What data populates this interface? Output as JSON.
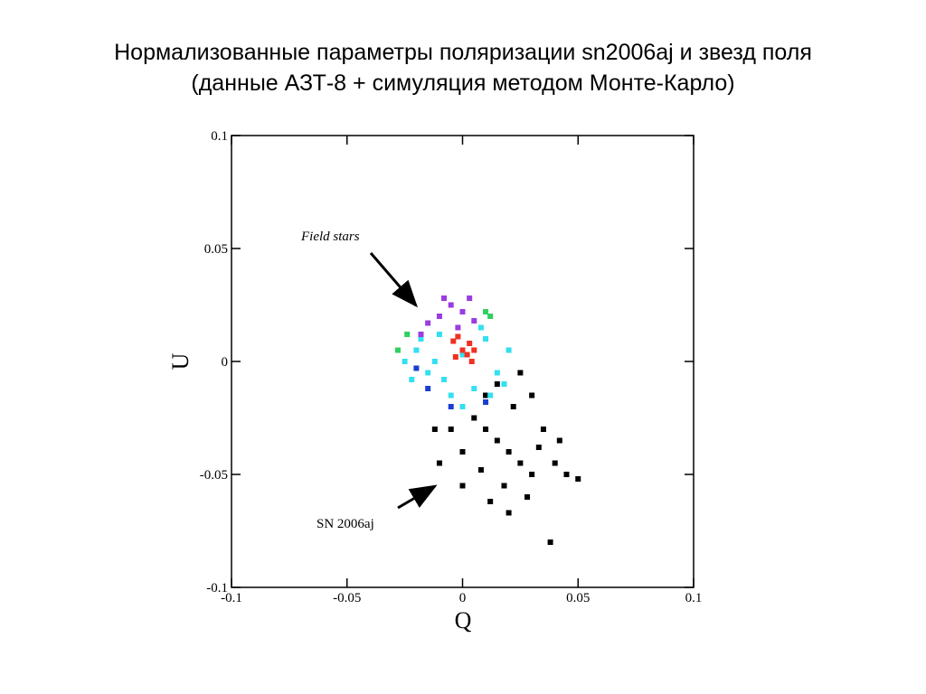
{
  "chart_data": {
    "type": "scatter",
    "title": "Нормализованные параметры поляризации sn2006aj и звезд поля",
    "subtitle": "(данные АЗТ-8 + симуляция методом Монте-Карло)",
    "x_label": "Q",
    "y_label": "U",
    "xlim": [
      -0.1,
      0.1
    ],
    "ylim": [
      -0.1,
      0.1
    ],
    "xticks": [
      -0.1,
      -0.05,
      0,
      0.05,
      0.1
    ],
    "yticks": [
      -0.1,
      -0.05,
      0,
      0.05,
      0.1
    ],
    "annotations": [
      "Field stars",
      "SN 2006aj"
    ],
    "series": [
      {
        "color": "#000000",
        "x": [
          0.015,
          0.02,
          0.01,
          0.025,
          0.005,
          0.03,
          0.0,
          0.018,
          0.035,
          0.008,
          0.022,
          -0.005,
          0.04,
          0.012,
          0.028,
          0.03,
          -0.01,
          0.045,
          0.038,
          0.05,
          0.015,
          0.025,
          -0.012,
          0.02,
          0.0,
          0.033,
          0.01,
          0.042
        ],
        "values": [
          -0.035,
          -0.04,
          -0.03,
          -0.045,
          -0.025,
          -0.05,
          -0.04,
          -0.055,
          -0.03,
          -0.048,
          -0.02,
          -0.03,
          -0.045,
          -0.062,
          -0.06,
          -0.015,
          -0.045,
          -0.05,
          -0.08,
          -0.052,
          -0.01,
          -0.005,
          -0.03,
          -0.067,
          -0.055,
          -0.038,
          -0.015,
          -0.035
        ]
      },
      {
        "color": "#1a3fd0",
        "x": [
          -0.015,
          -0.005,
          0.01,
          -0.02
        ],
        "values": [
          -0.012,
          -0.02,
          -0.018,
          -0.003
        ]
      },
      {
        "color": "#33e0f0",
        "x": [
          0,
          -0.02,
          -0.015,
          0.01,
          0.015,
          -0.01,
          0.005,
          -0.025,
          0.02,
          -0.005,
          0.012,
          -0.018,
          0.008,
          -0.008,
          0.018,
          -0.022,
          0.0,
          -0.012
        ],
        "values": [
          0.003,
          0.005,
          -0.005,
          0.01,
          -0.005,
          0.012,
          -0.012,
          0.0,
          0.005,
          -0.015,
          -0.015,
          0.01,
          0.015,
          -0.008,
          -0.01,
          -0.008,
          -0.02,
          0.0
        ]
      },
      {
        "color": "#30d060",
        "x": [
          -0.028,
          0.012,
          -0.024,
          0.01
        ],
        "values": [
          0.005,
          0.02,
          0.012,
          0.022
        ]
      },
      {
        "color": "#9a3ce0",
        "x": [
          -0.01,
          -0.005,
          0.0,
          -0.015,
          0.005,
          -0.008,
          0.003,
          -0.018,
          -0.002
        ],
        "values": [
          0.02,
          0.025,
          0.022,
          0.017,
          0.018,
          0.028,
          0.028,
          0.012,
          0.015
        ]
      },
      {
        "color": "#f03020",
        "x": [
          0,
          -0.003,
          0.003,
          0.004,
          -0.004,
          0.002,
          -0.002,
          0.005
        ],
        "values": [
          0.005,
          0.002,
          0.008,
          0.0,
          0.009,
          0.003,
          0.011,
          0.005
        ]
      }
    ]
  }
}
